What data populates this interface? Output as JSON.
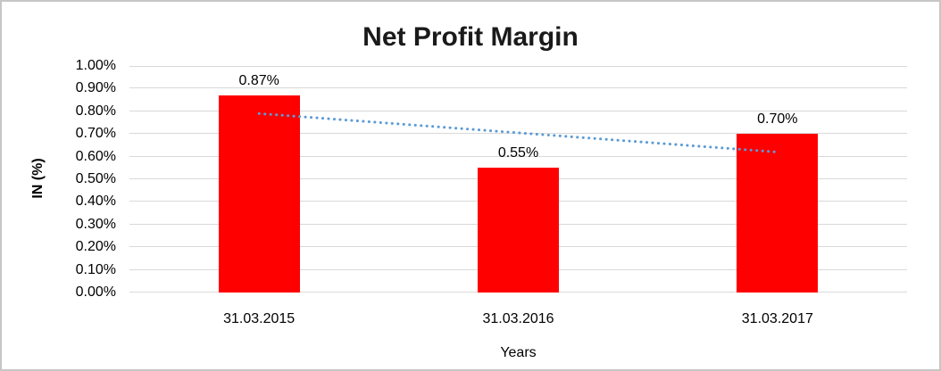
{
  "figure": {
    "border_color": "#c6c6c6",
    "background_color": "#ffffff"
  },
  "chart_data": {
    "type": "bar",
    "title": "Net Profit Margin",
    "xlabel": "Years",
    "ylabel": "IN (%)",
    "categories": [
      "31.03.2015",
      "31.03.2016",
      "31.03.2017"
    ],
    "values": [
      0.87,
      0.55,
      0.7
    ],
    "data_labels": [
      "0.87%",
      "0.55%",
      "0.70%"
    ],
    "ylim": [
      0,
      1.0
    ],
    "ytick_step": 0.1,
    "ytick_labels": [
      "0.00%",
      "0.10%",
      "0.20%",
      "0.30%",
      "0.40%",
      "0.50%",
      "0.60%",
      "0.70%",
      "0.80%",
      "0.90%",
      "1.00%"
    ],
    "grid": true,
    "legend": "none",
    "bar_color": "#ff0000",
    "gridline_color": "#d9d9d9",
    "axis_line_color": "#d9d9d9",
    "text_color": "#000000",
    "title_color": "#1a1a1a",
    "trendline": {
      "type": "linear",
      "style": "dotted",
      "color": "#5b9bd5",
      "start_value": 0.79,
      "end_value": 0.62
    }
  }
}
